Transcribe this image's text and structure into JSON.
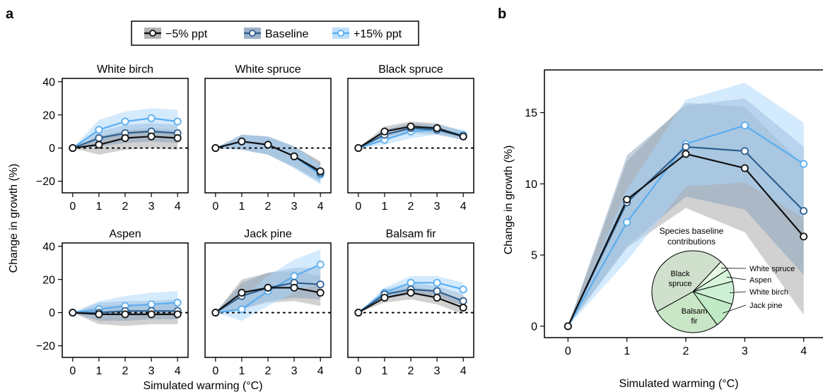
{
  "figure": {
    "panel_a_label": "a",
    "panel_b_label": "b",
    "legend": [
      "−5% ppt",
      "Baseline",
      "+15% ppt"
    ],
    "colors": {
      "minus5": "#111111",
      "baseline": "#2e5f8f",
      "plus15": "#5aaef0",
      "band_minus5": "#9a9a9a",
      "band_baseline": "#7d98b8",
      "band_plus15": "#a9d6fb"
    },
    "shared_xlabel": "Simulated warming (°C)",
    "shared_ylabel": "Change in growth (%)"
  },
  "chart_data": [
    {
      "type": "line",
      "title": "White birch",
      "x": [
        0,
        1,
        2,
        3,
        4
      ],
      "ylim": [
        -27,
        42
      ],
      "yticks": [
        -20,
        0,
        20,
        40
      ],
      "xticks": [
        0,
        1,
        2,
        3,
        4
      ],
      "zero_line": "dotted",
      "series": [
        {
          "name": "−5% ppt",
          "values": [
            0,
            2,
            6,
            7,
            6
          ],
          "lower": [
            0,
            -4,
            -1,
            0,
            -1
          ],
          "upper": [
            0,
            7,
            11,
            12,
            11
          ]
        },
        {
          "name": "Baseline",
          "values": [
            0,
            6,
            9,
            10,
            9
          ],
          "lower": [
            0,
            1,
            3,
            4,
            3
          ],
          "upper": [
            0,
            10,
            14,
            15,
            14
          ]
        },
        {
          "name": "+15% ppt",
          "values": [
            0,
            11,
            16,
            18,
            16
          ],
          "lower": [
            0,
            5,
            10,
            11,
            9
          ],
          "upper": [
            0,
            17,
            22,
            24,
            23
          ]
        }
      ]
    },
    {
      "type": "line",
      "title": "White spruce",
      "x": [
        0,
        1,
        2,
        3,
        4
      ],
      "ylim": [
        -27,
        42
      ],
      "yticks": [
        -20,
        0,
        20,
        40
      ],
      "xticks": [
        0,
        1,
        2,
        3,
        4
      ],
      "zero_line": "dotted",
      "series": [
        {
          "name": "−5% ppt",
          "values": [
            0,
            4,
            2,
            -5,
            -14
          ],
          "lower": [
            0,
            -1,
            -4,
            -11,
            -20
          ],
          "upper": [
            0,
            8,
            7,
            1,
            -8
          ]
        },
        {
          "name": "Baseline",
          "values": [
            0,
            4,
            2,
            -5,
            -15
          ],
          "lower": [
            0,
            -1,
            -4,
            -12,
            -21
          ],
          "upper": [
            0,
            8,
            7,
            1,
            -9
          ]
        },
        {
          "name": "+15% ppt",
          "values": [
            0,
            4,
            2,
            -5,
            -16
          ],
          "lower": [
            0,
            -1,
            -4,
            -12,
            -22
          ],
          "upper": [
            0,
            8,
            7,
            1,
            -10
          ]
        }
      ]
    },
    {
      "type": "line",
      "title": "Black spruce",
      "x": [
        0,
        1,
        2,
        3,
        4
      ],
      "ylim": [
        -27,
        42
      ],
      "yticks": [
        -20,
        0,
        20,
        40
      ],
      "xticks": [
        0,
        1,
        2,
        3,
        4
      ],
      "zero_line": "dotted",
      "series": [
        {
          "name": "−5% ppt",
          "values": [
            0,
            10,
            13,
            12,
            7
          ],
          "lower": [
            0,
            7,
            10,
            9,
            5
          ],
          "upper": [
            0,
            13,
            16,
            15,
            10
          ]
        },
        {
          "name": "Baseline",
          "values": [
            0,
            8,
            12,
            11,
            7
          ],
          "lower": [
            0,
            5,
            9,
            8,
            5
          ],
          "upper": [
            0,
            11,
            15,
            14,
            10
          ]
        },
        {
          "name": "+15% ppt",
          "values": [
            0,
            5,
            10,
            11,
            8
          ],
          "lower": [
            0,
            2,
            6,
            8,
            5
          ],
          "upper": [
            0,
            8,
            13,
            14,
            11
          ]
        }
      ]
    },
    {
      "type": "line",
      "title": "Aspen",
      "x": [
        0,
        1,
        2,
        3,
        4
      ],
      "ylim": [
        -27,
        42
      ],
      "yticks": [
        -20,
        0,
        20,
        40
      ],
      "xticks": [
        0,
        1,
        2,
        3,
        4
      ],
      "zero_line": "dotted",
      "series": [
        {
          "name": "−5% ppt",
          "values": [
            0,
            -1,
            -1,
            -1,
            -1
          ],
          "lower": [
            0,
            -7,
            -8,
            -7,
            -7
          ],
          "upper": [
            0,
            4,
            5,
            5,
            5
          ]
        },
        {
          "name": "Baseline",
          "values": [
            0,
            0,
            1,
            1,
            1
          ],
          "lower": [
            0,
            -5,
            -5,
            -4,
            -4
          ],
          "upper": [
            0,
            6,
            7,
            7,
            8
          ]
        },
        {
          "name": "+15% ppt",
          "values": [
            0,
            2,
            4,
            5,
            6
          ],
          "lower": [
            0,
            -3,
            -1,
            0,
            1
          ],
          "upper": [
            0,
            7,
            10,
            12,
            13
          ]
        }
      ]
    },
    {
      "type": "line",
      "title": "Jack pine",
      "x": [
        0,
        1,
        2,
        3,
        4
      ],
      "ylim": [
        -27,
        42
      ],
      "yticks": [
        -20,
        0,
        20,
        40
      ],
      "xticks": [
        0,
        1,
        2,
        3,
        4
      ],
      "zero_line": "dotted",
      "series": [
        {
          "name": "−5% ppt",
          "values": [
            0,
            12,
            15,
            15,
            12
          ],
          "lower": [
            0,
            2,
            6,
            7,
            4
          ],
          "upper": [
            0,
            20,
            24,
            25,
            22
          ]
        },
        {
          "name": "Baseline",
          "values": [
            0,
            10,
            15,
            18,
            17
          ],
          "lower": [
            0,
            2,
            7,
            9,
            8
          ],
          "upper": [
            0,
            18,
            24,
            27,
            27
          ]
        },
        {
          "name": "+15% ppt",
          "values": [
            0,
            2,
            13,
            22,
            29
          ],
          "lower": [
            0,
            -5,
            4,
            12,
            18
          ],
          "upper": [
            0,
            9,
            22,
            32,
            38
          ]
        }
      ]
    },
    {
      "type": "line",
      "title": "Balsam fir",
      "x": [
        0,
        1,
        2,
        3,
        4
      ],
      "ylim": [
        -27,
        42
      ],
      "yticks": [
        -20,
        0,
        20,
        40
      ],
      "xticks": [
        0,
        1,
        2,
        3,
        4
      ],
      "zero_line": "dotted",
      "series": [
        {
          "name": "−5% ppt",
          "values": [
            0,
            9,
            12,
            9,
            3
          ],
          "lower": [
            0,
            6,
            8,
            5,
            -1
          ],
          "upper": [
            0,
            12,
            16,
            13,
            7
          ]
        },
        {
          "name": "Baseline",
          "values": [
            0,
            11,
            14,
            13,
            7
          ],
          "lower": [
            0,
            8,
            11,
            10,
            4
          ],
          "upper": [
            0,
            14,
            18,
            16,
            11
          ]
        },
        {
          "name": "+15% ppt",
          "values": [
            0,
            12,
            18,
            18,
            14
          ],
          "lower": [
            0,
            9,
            14,
            14,
            10
          ],
          "upper": [
            0,
            15,
            22,
            22,
            18
          ]
        }
      ]
    },
    {
      "type": "line",
      "title": "",
      "x": [
        0,
        1,
        2,
        3,
        4
      ],
      "ylim": [
        -0.8,
        18
      ],
      "yticks": [
        0,
        5,
        10,
        15
      ],
      "xticks": [
        0,
        1,
        2,
        3,
        4
      ],
      "xlabel": "Simulated warming (°C)",
      "ylabel": "Change in growth (%)",
      "series": [
        {
          "name": "−5% ppt",
          "values": [
            0,
            8.9,
            12.1,
            11.1,
            6.3
          ],
          "lower": [
            0,
            5.5,
            8.3,
            6.6,
            0.8
          ],
          "upper": [
            0,
            11.6,
            15.7,
            15.4,
            11.3
          ]
        },
        {
          "name": "Baseline",
          "values": [
            0,
            8.7,
            12.6,
            12.3,
            8.1
          ],
          "lower": [
            0,
            5.6,
            9.1,
            8.2,
            3.6
          ],
          "upper": [
            0,
            12.0,
            15.5,
            16.0,
            12.6
          ]
        },
        {
          "name": "+15% ppt",
          "values": [
            0,
            7.3,
            12.8,
            14.1,
            11.4
          ],
          "lower": [
            0,
            4.6,
            9.8,
            10.1,
            7.6
          ],
          "upper": [
            0,
            9.6,
            15.9,
            17.1,
            14.3
          ]
        }
      ]
    },
    {
      "type": "pie",
      "title": "Species baseline\ncontributions",
      "labels": [
        "Black spruce",
        "White spruce",
        "Aspen",
        "White birch",
        "Jack pine",
        "Balsam fir"
      ],
      "values": [
        45,
        4,
        5,
        9,
        10,
        27
      ],
      "colors": [
        "#cfe0cc",
        "#e6f7e6",
        "#d8f5dc",
        "#cdf0d4",
        "#bfeac5",
        "#c9e6c6"
      ]
    }
  ]
}
